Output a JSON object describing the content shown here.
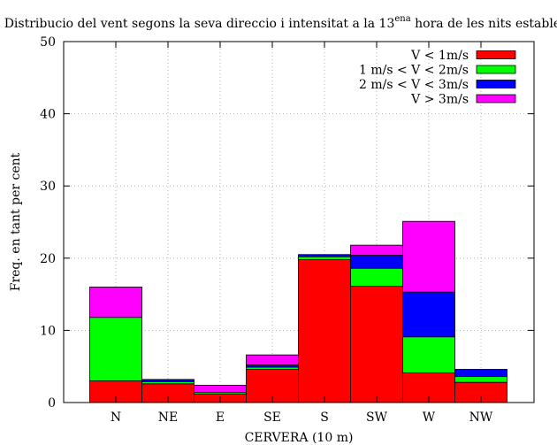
{
  "chart_data": {
    "type": "bar",
    "stacked": true,
    "title_main": "Distribucio del vent segons la seva direccio i intensitat a la 13",
    "title_sup": "ena",
    "title_end": " hora de les nits estables",
    "xlabel": "CERVERA (10 m)",
    "ylabel": "Freq. en tant per cent",
    "ylim": [
      0,
      50
    ],
    "yticks": [
      "0",
      "10",
      "20",
      "30",
      "40",
      "50"
    ],
    "grid": true,
    "legend_position": "top-right",
    "categories": [
      "N",
      "NE",
      "E",
      "SE",
      "S",
      "SW",
      "W",
      "NW"
    ],
    "series": [
      {
        "name": "V < 1m/s",
        "color": "#ff0000",
        "values": [
          3.0,
          2.6,
          1.2,
          4.6,
          19.8,
          16.1,
          4.1,
          2.8
        ]
      },
      {
        "name": "1 m/s < V < 2m/s",
        "color": "#00ff00",
        "values": [
          8.8,
          0.3,
          0.2,
          0.3,
          0.4,
          2.5,
          5.0,
          0.8
        ]
      },
      {
        "name": "2 m/s < V < 3m/s",
        "color": "#0000ff",
        "values": [
          0.0,
          0.3,
          0.0,
          0.3,
          0.3,
          1.8,
          6.2,
          1.0
        ]
      },
      {
        "name": "V > 3m/s",
        "color": "#ff00ff",
        "values": [
          4.2,
          0.0,
          1.0,
          1.4,
          0.0,
          1.4,
          9.8,
          0.0
        ]
      }
    ]
  }
}
